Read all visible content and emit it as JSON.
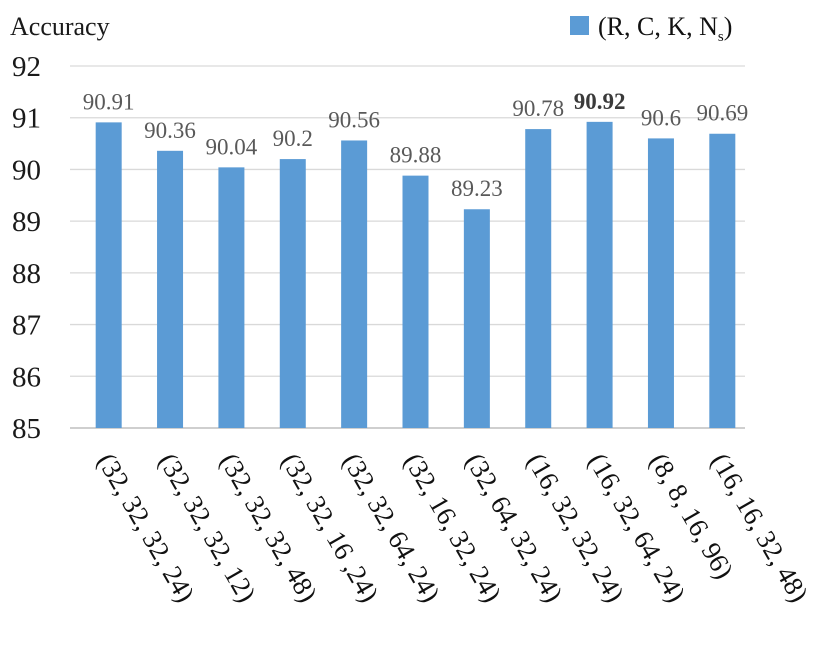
{
  "chart_data": {
    "type": "bar",
    "title": "",
    "ylabel": "Accuracy",
    "xlabel": "",
    "ylim": [
      85,
      92
    ],
    "yticks": [
      "85",
      "86",
      "87",
      "88",
      "89",
      "90",
      "91",
      "92"
    ],
    "grid": true,
    "legend_position": "top-right",
    "categories": [
      "(32, 32, 32, 24)",
      "(32, 32, 32, 12)",
      "(32, 32, 32, 48)",
      "(32, 32, 16 ,24)",
      "(32, 32, 64, 24)",
      "(32, 16, 32, 24)",
      "(32, 64, 32, 24)",
      "(16, 32, 32, 24)",
      "(16, 32, 64, 24)",
      "(8, 8, 16, 96)",
      "(16, 16, 32, 48)"
    ],
    "series": [
      {
        "legend_main": "(R, C, K, N",
        "legend_sub": "s",
        "legend_close": ")",
        "values": [
          90.91,
          90.36,
          90.04,
          90.2,
          90.56,
          89.88,
          89.23,
          90.78,
          90.92,
          90.6,
          90.69
        ],
        "value_labels": [
          "90.91",
          "90.36",
          "90.04",
          "90.2",
          "90.56",
          "89.88",
          "89.23",
          "90.78",
          "90.92",
          "90.6",
          "90.69"
        ],
        "highlighted_label_index": 8
      }
    ],
    "colors": {
      "bar": "#5b9bd5",
      "grid": "#d9d9d9"
    }
  }
}
